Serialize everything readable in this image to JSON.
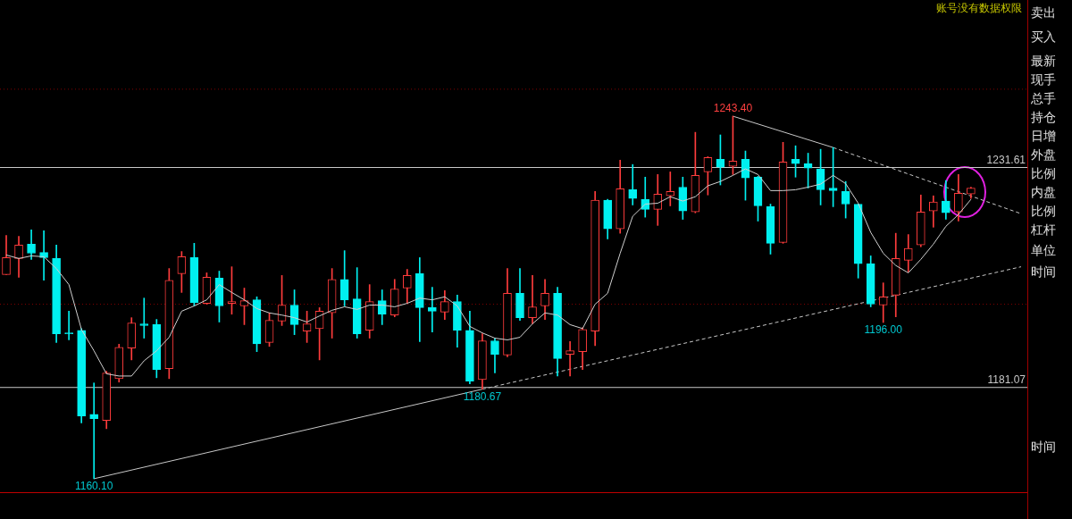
{
  "chart_data": {
    "type": "candlestick",
    "categories": [
      null,
      null,
      null,
      null,
      null,
      null,
      null,
      null,
      null,
      null,
      null,
      null,
      null,
      null,
      null,
      null,
      null,
      null,
      null,
      null,
      null,
      null,
      null,
      null,
      null,
      null,
      null,
      null,
      null,
      null,
      null,
      null,
      null,
      null,
      null,
      null,
      null,
      null,
      null,
      null,
      null,
      null,
      null,
      null,
      null,
      null,
      null,
      null,
      null,
      null,
      null,
      null,
      null,
      null,
      null,
      null,
      null,
      null,
      null,
      null,
      null,
      null,
      null,
      null,
      null,
      null,
      null,
      null,
      null,
      null,
      null,
      null,
      null,
      null,
      null,
      null,
      null,
      null,
      null,
      null,
      null,
      null
    ],
    "ohlc": [
      [
        1207.0,
        1216.0,
        1207.0,
        1210.9
      ],
      [
        1210.7,
        1215.8,
        1206.4,
        1213.8
      ],
      [
        1214.0,
        1217.3,
        1210.5,
        1211.9
      ],
      [
        1212.1,
        1217.1,
        1205.7,
        1210.9
      ],
      [
        1210.7,
        1213.8,
        1191.4,
        1193.4
      ],
      [
        1193.6,
        1198.6,
        1192.0,
        1193.4
      ],
      [
        1194.2,
        1194.6,
        1172.9,
        1174.5
      ],
      [
        1174.9,
        1182.1,
        1160.1,
        1173.9
      ],
      [
        1173.5,
        1184.8,
        1171.6,
        1184.4
      ],
      [
        1183.1,
        1191.0,
        1182.3,
        1190.3
      ],
      [
        1190.1,
        1197.1,
        1187.4,
        1195.9
      ],
      [
        1195.7,
        1201.6,
        1192.4,
        1195.3
      ],
      [
        1195.5,
        1196.7,
        1183.3,
        1185.2
      ],
      [
        1185.4,
        1208.4,
        1183.1,
        1205.7
      ],
      [
        1207.2,
        1212.3,
        1202.9,
        1211.1
      ],
      [
        1210.9,
        1214.2,
        1199.8,
        1200.6
      ],
      [
        1200.4,
        1207.4,
        1200.2,
        1206.4
      ],
      [
        1206.2,
        1207.8,
        1196.1,
        1199.8
      ],
      [
        1200.4,
        1208.8,
        1197.9,
        1200.8
      ],
      [
        1199.8,
        1203.9,
        1195.5,
        1201.0
      ],
      [
        1201.2,
        1201.9,
        1189.3,
        1191.1
      ],
      [
        1191.4,
        1198.2,
        1190.5,
        1196.5
      ],
      [
        1196.3,
        1206.8,
        1195.3,
        1200.0
      ],
      [
        1200.0,
        1203.5,
        1193.2,
        1195.5
      ],
      [
        1194.0,
        1198.6,
        1191.4,
        1195.7
      ],
      [
        1194.6,
        1199.4,
        1187.4,
        1198.6
      ],
      [
        1198.2,
        1208.4,
        1192.4,
        1205.9
      ],
      [
        1205.9,
        1212.5,
        1199.8,
        1201.2
      ],
      [
        1201.4,
        1208.6,
        1192.4,
        1193.4
      ],
      [
        1194.2,
        1204.7,
        1192.4,
        1200.8
      ],
      [
        1201.0,
        1203.5,
        1195.5,
        1197.9
      ],
      [
        1197.7,
        1205.9,
        1197.3,
        1203.7
      ],
      [
        1203.9,
        1208.2,
        1200.4,
        1206.8
      ],
      [
        1207.2,
        1210.9,
        1191.6,
        1199.4
      ],
      [
        1199.4,
        1204.1,
        1193.8,
        1198.6
      ],
      [
        1198.4,
        1203.3,
        1196.7,
        1200.8
      ],
      [
        1200.8,
        1202.3,
        1190.3,
        1194.2
      ],
      [
        1194.2,
        1198.6,
        1181.9,
        1182.5
      ],
      [
        1182.9,
        1193.4,
        1180.67,
        1191.8
      ],
      [
        1191.8,
        1192.4,
        1184.4,
        1188.7
      ],
      [
        1188.5,
        1208.4,
        1188.1,
        1202.7
      ],
      [
        1202.7,
        1208.4,
        1196.5,
        1197.1
      ],
      [
        1197.1,
        1206.8,
        1195.7,
        1199.6
      ],
      [
        1199.8,
        1205.9,
        1196.7,
        1202.7
      ],
      [
        1202.7,
        1204.1,
        1183.7,
        1187.7
      ],
      [
        1188.7,
        1191.6,
        1183.7,
        1189.5
      ],
      [
        1189.3,
        1194.8,
        1185.2,
        1194.4
      ],
      [
        1194.0,
        1226.1,
        1190.7,
        1224.1
      ],
      [
        1224.1,
        1224.3,
        1215.2,
        1217.5
      ],
      [
        1217.5,
        1233.3,
        1216.5,
        1226.7
      ],
      [
        1226.5,
        1232.3,
        1223.0,
        1224.5
      ],
      [
        1224.3,
        1229.4,
        1220.2,
        1222.0
      ],
      [
        1222.0,
        1230.0,
        1218.3,
        1225.5
      ],
      [
        1225.1,
        1230.6,
        1222.8,
        1226.1
      ],
      [
        1227.1,
        1229.4,
        1219.7,
        1221.6
      ],
      [
        1221.4,
        1239.7,
        1221.2,
        1229.8
      ],
      [
        1230.6,
        1234.1,
        1225.3,
        1233.9
      ],
      [
        1233.5,
        1239.1,
        1227.6,
        1231.7
      ],
      [
        1231.9,
        1243.4,
        1230.0,
        1233.1
      ],
      [
        1233.5,
        1235.4,
        1224.1,
        1229.2
      ],
      [
        1229.4,
        1229.6,
        1219.3,
        1222.8
      ],
      [
        1222.6,
        1223.2,
        1211.7,
        1214.2
      ],
      [
        1214.4,
        1237.4,
        1214.2,
        1232.9
      ],
      [
        1233.5,
        1236.6,
        1229.4,
        1232.5
      ],
      [
        1232.5,
        1234.9,
        1226.9,
        1231.5
      ],
      [
        1231.3,
        1235.8,
        1223.0,
        1226.5
      ],
      [
        1226.9,
        1236.2,
        1222.6,
        1226.3
      ],
      [
        1226.1,
        1228.4,
        1220.0,
        1223.2
      ],
      [
        1223.2,
        1223.2,
        1206.2,
        1209.5
      ],
      [
        1209.5,
        1211.3,
        1199.6,
        1200.2
      ],
      [
        1200.0,
        1205.1,
        1196.0,
        1201.9
      ],
      [
        1202.3,
        1216.5,
        1197.3,
        1210.7
      ],
      [
        1210.3,
        1216.2,
        1207.6,
        1213.0
      ],
      [
        1213.8,
        1225.3,
        1213.4,
        1221.4
      ],
      [
        1221.6,
        1225.1,
        1217.9,
        1223.7
      ],
      [
        1223.9,
        1228.6,
        1219.7,
        1221.2
      ],
      [
        1221.4,
        1230.0,
        1219.3,
        1225.7
      ],
      [
        1225.5,
        1227.1,
        1224.5,
        1226.9
      ],
      null,
      null,
      null,
      null
    ],
    "colors": [
      "#ff3c3c",
      "#ff3c3c",
      "#00f0f0",
      "#00f0f0",
      "#00f0f0",
      "#00f0f0",
      "#00f0f0",
      "#00f0f0",
      "#ff3c3c",
      "#ff3c3c",
      "#ff3c3c",
      "#00f0f0",
      "#00f0f0",
      "#ff3c3c",
      "#ff3c3c",
      "#00f0f0",
      "#ff3c3c",
      "#00f0f0",
      "#ff3c3c",
      "#ff3c3c",
      "#00f0f0",
      "#ff3c3c",
      "#ff3c3c",
      "#00f0f0",
      "#ff3c3c",
      "#ff3c3c",
      "#ff3c3c",
      "#00f0f0",
      "#00f0f0",
      "#ff3c3c",
      "#00f0f0",
      "#ff3c3c",
      "#ff3c3c",
      "#00f0f0",
      "#00f0f0",
      "#ff3c3c",
      "#00f0f0",
      "#00f0f0",
      "#ff3c3c",
      "#00f0f0",
      "#ff3c3c",
      "#00f0f0",
      "#ff3c3c",
      "#ff3c3c",
      "#00f0f0",
      "#ff3c3c",
      "#ff3c3c",
      "#ff3c3c",
      "#00f0f0",
      "#ff3c3c",
      "#00f0f0",
      "#00f0f0",
      "#ff3c3c",
      "#ff3c3c",
      "#00f0f0",
      "#ff3c3c",
      "#ff3c3c",
      "#00f0f0",
      "#ff3c3c",
      "#00f0f0",
      "#00f0f0",
      "#00f0f0",
      "#ff3c3c",
      "#00f0f0",
      "#00f0f0",
      "#00f0f0",
      "#00f0f0",
      "#00f0f0",
      "#00f0f0",
      "#00f0f0",
      "#ff3c3c",
      "#ff3c3c",
      "#ff3c3c",
      "#ff3c3c",
      "#ff3c3c",
      "#00f0f0",
      "#ff3c3c",
      "#ff3c3c",
      null,
      null,
      null,
      null
    ],
    "series": [
      {
        "type": "line",
        "color": "#d0d0d0",
        "values": [
          1211.5,
          1210.7,
          1211.3,
          1211.1,
          1208.4,
          1204.7,
          1194.4,
          1189.5,
          1184.2,
          1183.7,
          1183.7,
          1187.2,
          1189.5,
          1192.6,
          1198.6,
          1199.8,
          1201.2,
          1204.7,
          1202.9,
          1201.2,
          1199.2,
          1198.2,
          1197.7,
          1197.1,
          1196.1,
          1197.5,
          1198.8,
          1199.6,
          1199.0,
          1200.0,
          1200.0,
          1199.6,
          1200.4,
          1201.6,
          1201.2,
          1201.9,
          1199.8,
          1195.1,
          1193.6,
          1192.4,
          1192.0,
          1192.6,
          1195.7,
          1198.2,
          1197.7,
          1195.5,
          1194.6,
          1200.2,
          1202.7,
          1211.9,
          1220.4,
          1223.2,
          1223.4,
          1224.9,
          1223.9,
          1224.9,
          1227.4,
          1228.4,
          1229.8,
          1231.3,
          1230.0,
          1226.3,
          1226.3,
          1226.5,
          1227.1,
          1227.8,
          1229.8,
          1227.9,
          1223.4,
          1216.7,
          1211.9,
          1209.1,
          1207.4,
          1210.5,
          1214.0,
          1218.1,
          1220.8,
          1224.3,
          null,
          null,
          null,
          null
        ]
      },
      {
        "type": "line",
        "color": "#c8c8c8",
        "line_style": "solid",
        "values": [
          null,
          null,
          null,
          null,
          null,
          null,
          null,
          1160.1,
          null,
          null,
          null,
          null,
          null,
          null,
          null,
          null,
          null,
          null,
          null,
          null,
          null,
          null,
          null,
          null,
          null,
          null,
          null,
          null,
          null,
          null,
          null,
          null,
          null,
          null,
          null,
          null,
          null,
          null,
          1180.67,
          null,
          null,
          null,
          null,
          null,
          null,
          null,
          null,
          null,
          null,
          null,
          null,
          null,
          null,
          null,
          null,
          null,
          null,
          null,
          null,
          null,
          null,
          null,
          null,
          null,
          null,
          null,
          null,
          null,
          null,
          null,
          null,
          null,
          null,
          null,
          null,
          null,
          null,
          null,
          null,
          null,
          null,
          null
        ]
      },
      {
        "type": "line",
        "color": "#c8c8c8",
        "line_style": "dashed",
        "values": [
          null,
          null,
          null,
          null,
          null,
          null,
          null,
          null,
          null,
          null,
          null,
          null,
          null,
          null,
          null,
          null,
          null,
          null,
          null,
          null,
          null,
          null,
          null,
          null,
          null,
          null,
          null,
          null,
          null,
          null,
          null,
          null,
          null,
          null,
          null,
          null,
          null,
          null,
          1180.67,
          null,
          null,
          null,
          null,
          null,
          null,
          null,
          null,
          null,
          null,
          null,
          null,
          null,
          null,
          null,
          null,
          null,
          null,
          null,
          null,
          null,
          null,
          null,
          null,
          null,
          null,
          null,
          null,
          null,
          null,
          null,
          null,
          null,
          null,
          null,
          null,
          null,
          null,
          null,
          null,
          null,
          null,
          1208.8
        ]
      },
      {
        "type": "line",
        "color": "#c8c8c8",
        "line_style": "solid",
        "values": [
          null,
          null,
          null,
          null,
          null,
          null,
          null,
          null,
          null,
          null,
          null,
          null,
          null,
          null,
          null,
          null,
          null,
          null,
          null,
          null,
          null,
          null,
          null,
          null,
          null,
          null,
          null,
          null,
          null,
          null,
          null,
          null,
          null,
          null,
          null,
          null,
          null,
          null,
          null,
          null,
          null,
          null,
          null,
          null,
          null,
          null,
          null,
          null,
          null,
          null,
          null,
          null,
          null,
          null,
          null,
          null,
          null,
          null,
          1243.4,
          null,
          null,
          null,
          null,
          null,
          null,
          null,
          1236.2,
          null,
          null,
          null,
          null,
          null,
          null,
          null,
          null,
          null,
          null,
          null,
          null,
          null,
          null,
          null
        ]
      },
      {
        "type": "line",
        "color": "#c8c8c8",
        "line_style": "dashed",
        "values": [
          null,
          null,
          null,
          null,
          null,
          null,
          null,
          null,
          null,
          null,
          null,
          null,
          null,
          null,
          null,
          null,
          null,
          null,
          null,
          null,
          null,
          null,
          null,
          null,
          null,
          null,
          null,
          null,
          null,
          null,
          null,
          null,
          null,
          null,
          null,
          null,
          null,
          null,
          null,
          null,
          null,
          null,
          null,
          null,
          null,
          null,
          null,
          null,
          null,
          null,
          null,
          null,
          null,
          null,
          null,
          null,
          null,
          null,
          null,
          null,
          null,
          null,
          null,
          null,
          null,
          null,
          1236.2,
          null,
          null,
          null,
          null,
          null,
          null,
          null,
          null,
          null,
          null,
          null,
          null,
          null,
          null,
          1221.0
        ]
      }
    ],
    "ylim": [
      1157.0,
      1270.1
    ],
    "tick_labels": false,
    "ref_lines": [
      {
        "axis": "y",
        "value": 1231.61,
        "label": "1231.61",
        "color": "#c8c8c8"
      },
      {
        "axis": "y",
        "value": 1181.07,
        "label": "1181.07",
        "color": "#c8c8c8"
      },
      {
        "axis": "y",
        "value": 1249.6,
        "color": "#800000",
        "line_style": "dotted"
      },
      {
        "axis": "y",
        "value": 1200.2,
        "color": "#800000",
        "line_style": "dotted"
      }
    ],
    "annotations": [
      {
        "text": "1243.40",
        "y": 1243.4
      },
      {
        "text": "1196.00",
        "y": 1196.0
      },
      {
        "text": "1180.67",
        "y": 1180.67
      },
      {
        "text": "1160.10",
        "y": 1160.1
      },
      "账号没有数据权限",
      "卖出",
      "买入",
      "最新",
      "现手",
      "总手",
      "持仓",
      "日增",
      "外盘",
      "比例",
      "内盘",
      "比例",
      "杠杆",
      "单位",
      "时间",
      "时间"
    ]
  }
}
